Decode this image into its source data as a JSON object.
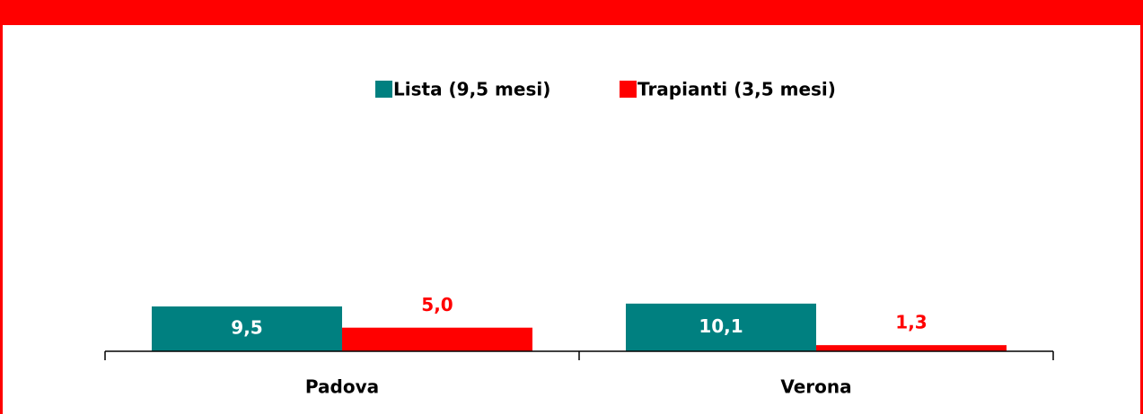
{
  "chart_data": {
    "type": "bar",
    "categories": [
      "Padova",
      "Verona"
    ],
    "series": [
      {
        "name": "Lista (9,5 mesi)",
        "color": "#008080",
        "values": [
          9.5,
          10.1
        ],
        "value_labels": [
          "9,5",
          "10,1"
        ]
      },
      {
        "name": "Trapianti (3,5 mesi)",
        "color": "#ff0000",
        "values": [
          5.0,
          1.3
        ],
        "value_labels": [
          "5,0",
          "1,3"
        ]
      }
    ],
    "ylim": [
      0,
      60
    ]
  }
}
